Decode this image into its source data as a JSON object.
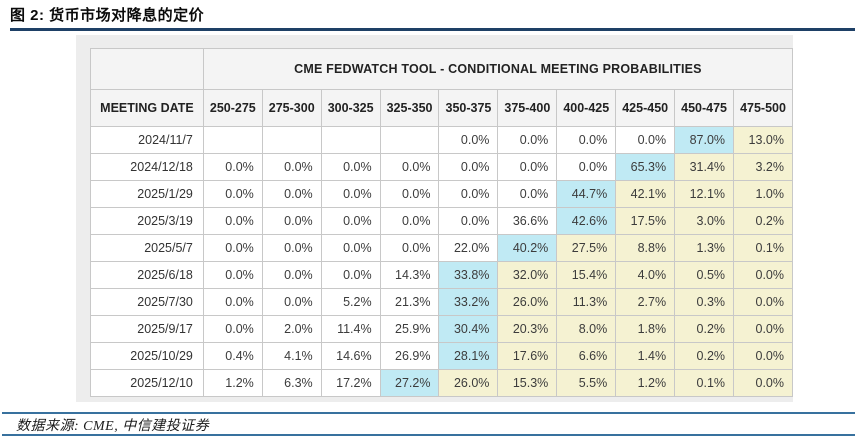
{
  "figure": {
    "title": "图 2:  货币市场对降息的定价"
  },
  "table": {
    "title": "CME FEDWATCH TOOL - CONDITIONAL MEETING PROBABILITIES",
    "date_header": "MEETING DATE",
    "rate_ranges": [
      "250-275",
      "275-300",
      "300-325",
      "325-350",
      "350-375",
      "375-400",
      "400-425",
      "425-450",
      "450-475",
      "475-500"
    ],
    "rows": [
      {
        "date": "2024/11/7",
        "values": [
          "",
          "",
          "",
          "",
          "0.0%",
          "0.0%",
          "0.0%",
          "0.0%",
          "87.0%",
          "13.0%"
        ],
        "cyan_index": 8
      },
      {
        "date": "2024/12/18",
        "values": [
          "0.0%",
          "0.0%",
          "0.0%",
          "0.0%",
          "0.0%",
          "0.0%",
          "0.0%",
          "65.3%",
          "31.4%",
          "3.2%"
        ],
        "cyan_index": 7
      },
      {
        "date": "2025/1/29",
        "values": [
          "0.0%",
          "0.0%",
          "0.0%",
          "0.0%",
          "0.0%",
          "0.0%",
          "44.7%",
          "42.1%",
          "12.1%",
          "1.0%"
        ],
        "cyan_index": 6
      },
      {
        "date": "2025/3/19",
        "values": [
          "0.0%",
          "0.0%",
          "0.0%",
          "0.0%",
          "0.0%",
          "36.6%",
          "42.6%",
          "17.5%",
          "3.0%",
          "0.2%"
        ],
        "cyan_index": 6
      },
      {
        "date": "2025/5/7",
        "values": [
          "0.0%",
          "0.0%",
          "0.0%",
          "0.0%",
          "22.0%",
          "40.2%",
          "27.5%",
          "8.8%",
          "1.3%",
          "0.1%"
        ],
        "cyan_index": 5
      },
      {
        "date": "2025/6/18",
        "values": [
          "0.0%",
          "0.0%",
          "0.0%",
          "14.3%",
          "33.8%",
          "32.0%",
          "15.4%",
          "4.0%",
          "0.5%",
          "0.0%"
        ],
        "cyan_index": 4
      },
      {
        "date": "2025/7/30",
        "values": [
          "0.0%",
          "0.0%",
          "5.2%",
          "21.3%",
          "33.2%",
          "26.0%",
          "11.3%",
          "2.7%",
          "0.3%",
          "0.0%"
        ],
        "cyan_index": 4
      },
      {
        "date": "2025/9/17",
        "values": [
          "0.0%",
          "2.0%",
          "11.4%",
          "25.9%",
          "30.4%",
          "20.3%",
          "8.0%",
          "1.8%",
          "0.2%",
          "0.0%"
        ],
        "cyan_index": 4
      },
      {
        "date": "2025/10/29",
        "values": [
          "0.4%",
          "4.1%",
          "14.6%",
          "26.9%",
          "28.1%",
          "17.6%",
          "6.6%",
          "1.4%",
          "0.2%",
          "0.0%"
        ],
        "cyan_index": 4
      },
      {
        "date": "2025/12/10",
        "values": [
          "1.2%",
          "6.3%",
          "17.2%",
          "27.2%",
          "26.0%",
          "15.3%",
          "5.5%",
          "1.2%",
          "0.1%",
          "0.0%"
        ],
        "cyan_index": 3
      }
    ]
  },
  "footer": {
    "source": "数据来源: CME, 中信建投证券"
  },
  "colors": {
    "highlight_cyan": "#c0eaf4",
    "highlight_yellow": "#f5f2d2",
    "header_bg": "#f4f4f4",
    "panel_bg": "#ededed",
    "title_rule": "#1e4066",
    "footer_rule": "#38719e"
  }
}
